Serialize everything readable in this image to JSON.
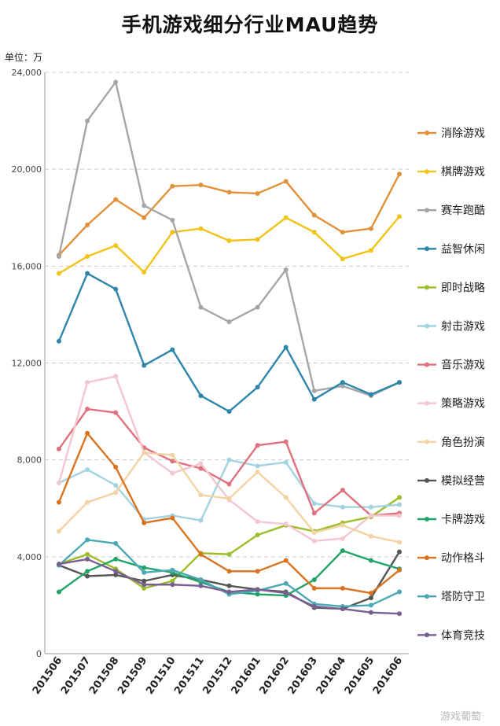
{
  "chart_data": {
    "type": "line",
    "title": "手机游戏细分行业MAU趋势",
    "unit": "单位：万",
    "ylim": [
      0,
      24000
    ],
    "yticks": [
      "0",
      "4,000",
      "8,000",
      "12,000",
      "16,000",
      "20,000",
      "24,000"
    ],
    "ytick_values": [
      0,
      4000,
      8000,
      12000,
      16000,
      20000,
      24000
    ],
    "grid": true,
    "legend": "right",
    "categories": [
      "201506",
      "201507",
      "201508",
      "201509",
      "201510",
      "201511",
      "201512",
      "201601",
      "201602",
      "201603",
      "201604",
      "201605",
      "201606"
    ],
    "series": [
      {
        "name": "消除游戏",
        "color": "#E0913A",
        "values": [
          16450,
          17700,
          18750,
          18000,
          19300,
          19350,
          19050,
          19000,
          19500,
          18100,
          17400,
          17550,
          19800
        ]
      },
      {
        "name": "棋牌游戏",
        "color": "#F2C318",
        "values": [
          15700,
          16400,
          16850,
          15750,
          17400,
          17550,
          17050,
          17100,
          18000,
          17400,
          16300,
          16650,
          18050
        ]
      },
      {
        "name": "赛车跑酷",
        "color": "#A6A6A6",
        "values": [
          16400,
          22000,
          23600,
          18500,
          17900,
          14300,
          13700,
          14300,
          15850,
          10850,
          11050,
          10650,
          11200
        ]
      },
      {
        "name": "益智休闲",
        "color": "#2E86AB",
        "values": [
          12900,
          15700,
          15050,
          11900,
          12550,
          10650,
          10000,
          11000,
          12650,
          10500,
          11200,
          10700,
          11200
        ]
      },
      {
        "name": "即时战略",
        "color": "#9CBE28",
        "values": [
          3700,
          4100,
          3500,
          2700,
          3000,
          4150,
          4100,
          4900,
          5300,
          5050,
          5400,
          5650,
          6450
        ]
      },
      {
        "name": "射击游戏",
        "color": "#A2D3E0",
        "values": [
          7050,
          7600,
          6950,
          5550,
          5700,
          5500,
          8000,
          7750,
          7900,
          6200,
          6050,
          6050,
          6150
        ]
      },
      {
        "name": "音乐游戏",
        "color": "#E0707E",
        "values": [
          8450,
          10100,
          9950,
          8500,
          7950,
          7650,
          7000,
          8600,
          8750,
          5800,
          6750,
          5700,
          5800
        ]
      },
      {
        "name": "策略游戏",
        "color": "#F4C6CF",
        "values": [
          7050,
          11200,
          11450,
          8300,
          7450,
          7850,
          6350,
          5450,
          5350,
          4650,
          4750,
          5700,
          5700
        ]
      },
      {
        "name": "角色扮演",
        "color": "#F3D2A4",
        "values": [
          5050,
          6250,
          6650,
          8300,
          8200,
          6550,
          6400,
          7500,
          6450,
          5000,
          5300,
          4850,
          4600
        ]
      },
      {
        "name": "模拟经营",
        "color": "#555555",
        "values": [
          3650,
          3200,
          3250,
          3000,
          3250,
          3050,
          2800,
          2650,
          2550,
          1900,
          1850,
          2300,
          4200
        ]
      },
      {
        "name": "卡牌游戏",
        "color": "#22A468",
        "values": [
          2550,
          3400,
          3900,
          3550,
          3350,
          2950,
          2550,
          2450,
          2400,
          3050,
          4250,
          3850,
          3500
        ]
      },
      {
        "name": "动作格斗",
        "color": "#D9731F",
        "values": [
          6250,
          9100,
          7700,
          5400,
          5600,
          4100,
          3400,
          3400,
          3850,
          2700,
          2700,
          2500,
          3450
        ]
      },
      {
        "name": "塔防守卫",
        "color": "#4BA9B4",
        "values": [
          3650,
          4700,
          4550,
          3350,
          3450,
          3050,
          2450,
          2600,
          2900,
          2050,
          1950,
          2000,
          2550
        ]
      },
      {
        "name": "体育竞技",
        "color": "#7A5F93",
        "values": [
          3700,
          3900,
          3400,
          2850,
          2850,
          2800,
          2550,
          2650,
          2500,
          1950,
          1850,
          1700,
          1650
        ]
      }
    ]
  },
  "watermark": "游戏葡萄"
}
